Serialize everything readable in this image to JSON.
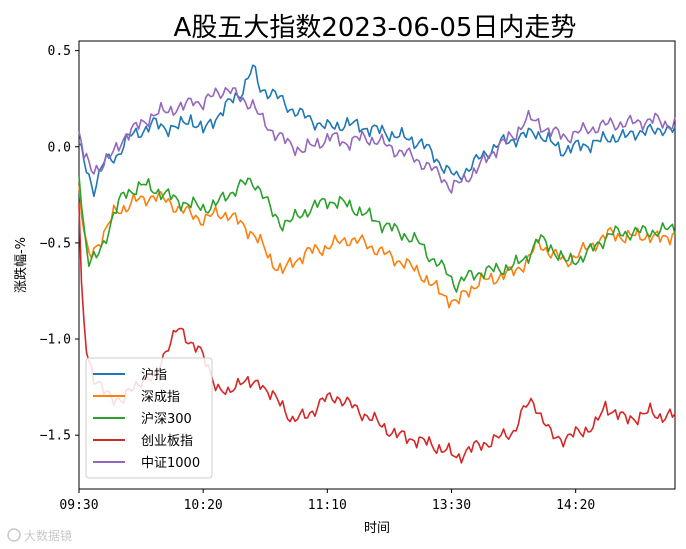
{
  "chart_data": {
    "type": "line",
    "title": "A股五大指数2023-06-05日内走势",
    "xlabel": "时间",
    "ylabel": "涨跌幅-%",
    "x_ticks": [
      "09:30",
      "10:20",
      "11:10",
      "13:30",
      "14:20"
    ],
    "x_tick_index": [
      0,
      50,
      100,
      150,
      200
    ],
    "x_count": 241,
    "ylim": [
      -1.78,
      0.55
    ],
    "y_ticks": [
      0.5,
      0.0,
      -0.5,
      -1.0,
      -1.5
    ],
    "y_tick_labels": [
      "0.5",
      "0.0",
      "−0.5",
      "−1.0",
      "−1.5"
    ],
    "grid": false,
    "legend_position": "lower-left",
    "series": [
      {
        "name": "沪指",
        "color": "#1f77b4",
        "knots": [
          [
            0,
            0.02
          ],
          [
            3,
            -0.12
          ],
          [
            6,
            -0.22
          ],
          [
            10,
            -0.08
          ],
          [
            15,
            -0.05
          ],
          [
            20,
            0.05
          ],
          [
            25,
            0.08
          ],
          [
            30,
            0.12
          ],
          [
            35,
            0.1
          ],
          [
            40,
            0.1
          ],
          [
            45,
            0.15
          ],
          [
            50,
            0.08
          ],
          [
            55,
            0.15
          ],
          [
            60,
            0.22
          ],
          [
            65,
            0.28
          ],
          [
            70,
            0.41
          ],
          [
            73,
            0.3
          ],
          [
            78,
            0.28
          ],
          [
            85,
            0.2
          ],
          [
            92,
            0.15
          ],
          [
            100,
            0.1
          ],
          [
            108,
            0.12
          ],
          [
            115,
            0.1
          ],
          [
            122,
            0.08
          ],
          [
            130,
            0.05
          ],
          [
            138,
            0.02
          ],
          [
            143,
            -0.05
          ],
          [
            148,
            -0.12
          ],
          [
            152,
            -0.16
          ],
          [
            158,
            -0.1
          ],
          [
            162,
            -0.05
          ],
          [
            170,
            0.02
          ],
          [
            178,
            0.05
          ],
          [
            184,
            0.08
          ],
          [
            190,
            0.02
          ],
          [
            195,
            -0.02
          ],
          [
            200,
            0.0
          ],
          [
            208,
            0.02
          ],
          [
            214,
            0.05
          ],
          [
            220,
            0.05
          ],
          [
            225,
            0.08
          ],
          [
            232,
            0.08
          ],
          [
            236,
            0.1
          ],
          [
            240,
            0.08
          ]
        ]
      },
      {
        "name": "深成指",
        "color": "#ff7f0e",
        "knots": [
          [
            0,
            -0.2
          ],
          [
            2,
            -0.45
          ],
          [
            4,
            -0.58
          ],
          [
            7,
            -0.52
          ],
          [
            10,
            -0.45
          ],
          [
            14,
            -0.35
          ],
          [
            18,
            -0.32
          ],
          [
            22,
            -0.28
          ],
          [
            26,
            -0.28
          ],
          [
            30,
            -0.25
          ],
          [
            35,
            -0.28
          ],
          [
            40,
            -0.32
          ],
          [
            45,
            -0.35
          ],
          [
            50,
            -0.38
          ],
          [
            55,
            -0.35
          ],
          [
            60,
            -0.35
          ],
          [
            65,
            -0.4
          ],
          [
            70,
            -0.45
          ],
          [
            73,
            -0.5
          ],
          [
            78,
            -0.6
          ],
          [
            82,
            -0.65
          ],
          [
            86,
            -0.6
          ],
          [
            92,
            -0.55
          ],
          [
            100,
            -0.52
          ],
          [
            108,
            -0.48
          ],
          [
            115,
            -0.5
          ],
          [
            122,
            -0.55
          ],
          [
            130,
            -0.6
          ],
          [
            137,
            -0.65
          ],
          [
            142,
            -0.72
          ],
          [
            148,
            -0.78
          ],
          [
            152,
            -0.82
          ],
          [
            156,
            -0.75
          ],
          [
            162,
            -0.7
          ],
          [
            168,
            -0.68
          ],
          [
            175,
            -0.65
          ],
          [
            180,
            -0.6
          ],
          [
            185,
            -0.5
          ],
          [
            190,
            -0.55
          ],
          [
            196,
            -0.6
          ],
          [
            202,
            -0.55
          ],
          [
            208,
            -0.5
          ],
          [
            214,
            -0.45
          ],
          [
            220,
            -0.47
          ],
          [
            228,
            -0.46
          ],
          [
            234,
            -0.48
          ],
          [
            240,
            -0.45
          ]
        ]
      },
      {
        "name": "沪深300",
        "color": "#2ca02c",
        "knots": [
          [
            0,
            -0.15
          ],
          [
            2,
            -0.42
          ],
          [
            4,
            -0.6
          ],
          [
            7,
            -0.58
          ],
          [
            10,
            -0.5
          ],
          [
            14,
            -0.35
          ],
          [
            18,
            -0.25
          ],
          [
            22,
            -0.22
          ],
          [
            26,
            -0.2
          ],
          [
            30,
            -0.22
          ],
          [
            35,
            -0.25
          ],
          [
            40,
            -0.28
          ],
          [
            45,
            -0.3
          ],
          [
            50,
            -0.32
          ],
          [
            55,
            -0.3
          ],
          [
            60,
            -0.25
          ],
          [
            65,
            -0.2
          ],
          [
            70,
            -0.18
          ],
          [
            73,
            -0.22
          ],
          [
            78,
            -0.35
          ],
          [
            82,
            -0.4
          ],
          [
            86,
            -0.38
          ],
          [
            92,
            -0.33
          ],
          [
            100,
            -0.28
          ],
          [
            108,
            -0.3
          ],
          [
            115,
            -0.35
          ],
          [
            122,
            -0.4
          ],
          [
            130,
            -0.45
          ],
          [
            137,
            -0.5
          ],
          [
            142,
            -0.58
          ],
          [
            148,
            -0.65
          ],
          [
            152,
            -0.72
          ],
          [
            156,
            -0.68
          ],
          [
            162,
            -0.65
          ],
          [
            168,
            -0.64
          ],
          [
            175,
            -0.62
          ],
          [
            180,
            -0.58
          ],
          [
            185,
            -0.48
          ],
          [
            190,
            -0.52
          ],
          [
            196,
            -0.6
          ],
          [
            202,
            -0.58
          ],
          [
            208,
            -0.52
          ],
          [
            214,
            -0.45
          ],
          [
            220,
            -0.45
          ],
          [
            228,
            -0.44
          ],
          [
            234,
            -0.44
          ],
          [
            240,
            -0.42
          ]
        ]
      },
      {
        "name": "创业板指",
        "color": "#d62728",
        "knots": [
          [
            0,
            -0.3
          ],
          [
            1,
            -0.75
          ],
          [
            3,
            -1.05
          ],
          [
            6,
            -1.2
          ],
          [
            10,
            -1.28
          ],
          [
            14,
            -1.3
          ],
          [
            18,
            -1.32
          ],
          [
            22,
            -1.25
          ],
          [
            26,
            -1.2
          ],
          [
            30,
            -1.22
          ],
          [
            35,
            -1.05
          ],
          [
            40,
            -0.95
          ],
          [
            44,
            -1.0
          ],
          [
            48,
            -1.05
          ],
          [
            52,
            -1.15
          ],
          [
            56,
            -1.25
          ],
          [
            60,
            -1.3
          ],
          [
            65,
            -1.2
          ],
          [
            70,
            -1.25
          ],
          [
            73,
            -1.22
          ],
          [
            78,
            -1.3
          ],
          [
            82,
            -1.35
          ],
          [
            86,
            -1.42
          ],
          [
            92,
            -1.4
          ],
          [
            98,
            -1.32
          ],
          [
            104,
            -1.3
          ],
          [
            110,
            -1.35
          ],
          [
            116,
            -1.4
          ],
          [
            122,
            -1.45
          ],
          [
            128,
            -1.5
          ],
          [
            135,
            -1.52
          ],
          [
            142,
            -1.55
          ],
          [
            148,
            -1.58
          ],
          [
            152,
            -1.62
          ],
          [
            156,
            -1.58
          ],
          [
            162,
            -1.55
          ],
          [
            168,
            -1.52
          ],
          [
            175,
            -1.48
          ],
          [
            180,
            -1.35
          ],
          [
            183,
            -1.32
          ],
          [
            186,
            -1.4
          ],
          [
            190,
            -1.5
          ],
          [
            196,
            -1.52
          ],
          [
            202,
            -1.48
          ],
          [
            208,
            -1.45
          ],
          [
            212,
            -1.35
          ],
          [
            216,
            -1.38
          ],
          [
            220,
            -1.42
          ],
          [
            226,
            -1.4
          ],
          [
            230,
            -1.38
          ],
          [
            234,
            -1.4
          ],
          [
            240,
            -1.4
          ]
        ]
      },
      {
        "name": "中证1000",
        "color": "#9467bd",
        "knots": [
          [
            0,
            0.08
          ],
          [
            2,
            -0.05
          ],
          [
            5,
            -0.12
          ],
          [
            9,
            -0.1
          ],
          [
            13,
            -0.05
          ],
          [
            18,
            0.05
          ],
          [
            23,
            0.1
          ],
          [
            28,
            0.15
          ],
          [
            33,
            0.18
          ],
          [
            38,
            0.2
          ],
          [
            42,
            0.2
          ],
          [
            46,
            0.25
          ],
          [
            50,
            0.22
          ],
          [
            55,
            0.28
          ],
          [
            60,
            0.3
          ],
          [
            65,
            0.25
          ],
          [
            70,
            0.22
          ],
          [
            73,
            0.15
          ],
          [
            78,
            0.08
          ],
          [
            84,
            0.02
          ],
          [
            90,
            -0.02
          ],
          [
            96,
            0.02
          ],
          [
            102,
            0.05
          ],
          [
            108,
            0.02
          ],
          [
            115,
            0.05
          ],
          [
            122,
            0.02
          ],
          [
            128,
            -0.02
          ],
          [
            134,
            -0.05
          ],
          [
            140,
            -0.1
          ],
          [
            146,
            -0.15
          ],
          [
            150,
            -0.22
          ],
          [
            154,
            -0.18
          ],
          [
            160,
            -0.12
          ],
          [
            165,
            -0.05
          ],
          [
            170,
            0.02
          ],
          [
            175,
            0.05
          ],
          [
            180,
            0.15
          ],
          [
            185,
            0.12
          ],
          [
            190,
            0.08
          ],
          [
            196,
            0.05
          ],
          [
            202,
            0.08
          ],
          [
            208,
            0.1
          ],
          [
            214,
            0.12
          ],
          [
            220,
            0.12
          ],
          [
            226,
            0.13
          ],
          [
            232,
            0.14
          ],
          [
            236,
            0.12
          ],
          [
            240,
            0.12
          ]
        ]
      }
    ]
  },
  "watermark": "大数据镜"
}
